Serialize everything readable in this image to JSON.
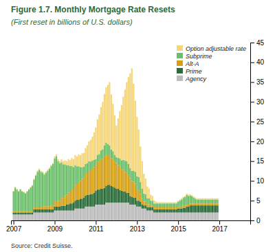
{
  "chart_data": {
    "type": "bar",
    "stacked": true,
    "title": "Figure 1.7. Monthly Mortgage Rate Resets",
    "subtitle": "(First reset in billions of U.S. dollars)",
    "annotations": [
      "Source: Credit Suisse."
    ],
    "legend": "upper right",
    "grid": false,
    "xlim": [
      2006.88,
      2018.5
    ],
    "xticks": [
      2007,
      2009,
      2011,
      2013,
      2015,
      2017
    ],
    "ylim": [
      0,
      45
    ],
    "yticks": [
      0,
      5,
      10,
      15,
      20,
      25,
      30,
      35,
      40,
      45
    ],
    "x": [
      2007,
      2007.0833333333,
      2007.1666666667,
      2007.25,
      2007.3333333333,
      2007.4166666667,
      2007.5,
      2007.5833333333,
      2007.6666666667,
      2007.75,
      2007.8333333333,
      2007.9166666667,
      2008,
      2008.0833333333,
      2008.1666666667,
      2008.25,
      2008.3333333333,
      2008.4166666667,
      2008.5,
      2008.5833333333,
      2008.6666666667,
      2008.75,
      2008.8333333333,
      2008.9166666667,
      2009,
      2009.0833333333,
      2009.1666666667,
      2009.25,
      2009.3333333333,
      2009.4166666667,
      2009.5,
      2009.5833333333,
      2009.6666666667,
      2009.75,
      2009.8333333333,
      2009.9166666667,
      2010,
      2010.0833333333,
      2010.1666666667,
      2010.25,
      2010.3333333333,
      2010.4166666667,
      2010.5,
      2010.5833333333,
      2010.6666666667,
      2010.75,
      2010.8333333333,
      2010.9166666667,
      2011,
      2011.0833333333,
      2011.1666666667,
      2011.25,
      2011.3333333333,
      2011.4166666667,
      2011.5,
      2011.5833333333,
      2011.6666666667,
      2011.75,
      2011.8333333333,
      2011.9166666667,
      2012,
      2012.0833333333,
      2012.1666666667,
      2012.25,
      2012.3333333333,
      2012.4166666667,
      2012.5,
      2012.5833333333,
      2012.6666666667,
      2012.75,
      2012.8333333333,
      2012.9166666667,
      2013,
      2013.0833333333,
      2013.1666666667,
      2013.25,
      2013.3333333333,
      2013.4166666667,
      2013.5,
      2013.5833333333,
      2013.6666666667,
      2013.75,
      2013.8333333333,
      2013.9166666667,
      2014,
      2014.0833333333,
      2014.1666666667,
      2014.25,
      2014.3333333333,
      2014.4166666667,
      2014.5,
      2014.5833333333,
      2014.6666666667,
      2014.75,
      2014.8333333333,
      2014.9166666667,
      2015,
      2015.0833333333,
      2015.1666666667,
      2015.25,
      2015.3333333333,
      2015.4166666667,
      2015.5,
      2015.5833333333,
      2015.6666666667,
      2015.75,
      2015.8333333333,
      2015.9166666667,
      2016,
      2016.0833333333,
      2016.1666666667,
      2016.25,
      2016.3333333333,
      2016.4166666667,
      2016.5,
      2016.5833333333,
      2016.6666666667,
      2016.75,
      2016.8333333333,
      2016.9166666667
    ],
    "series": [
      {
        "name": "Agency",
        "color": "#BBBBBB",
        "values": [
          1.5,
          1.5,
          1.5,
          1.5,
          1.5,
          1.5,
          1.5,
          1.5,
          1.5,
          1.5,
          1.5,
          1.5,
          2.0,
          2.0,
          2.0,
          2.0,
          2.0,
          2.0,
          2.0,
          2.0,
          2.0,
          2.0,
          2.0,
          2.0,
          2.5,
          2.5,
          2.5,
          2.5,
          2.5,
          2.5,
          2.5,
          2.5,
          2.5,
          2.5,
          2.5,
          2.5,
          3.0,
          3.0,
          3.0,
          3.0,
          3.0,
          3.0,
          3.5,
          3.5,
          3.5,
          3.5,
          3.5,
          3.5,
          4.0,
          4.0,
          4.0,
          4.0,
          4.0,
          4.0,
          4.5,
          4.5,
          4.5,
          4.5,
          4.5,
          4.5,
          4.5,
          4.5,
          4.5,
          4.5,
          4.5,
          4.5,
          4.5,
          4.5,
          4.0,
          4.0,
          4.0,
          4.0,
          3.5,
          3.5,
          3.5,
          3.0,
          3.0,
          3.0,
          2.5,
          2.5,
          2.5,
          2.5,
          2.0,
          2.0,
          2.0,
          2.0,
          2.0,
          2.0,
          2.0,
          2.0,
          2.0,
          2.0,
          2.0,
          2.0,
          2.0,
          2.0,
          2.0,
          2.0,
          2.0,
          2.0,
          2.0,
          2.0,
          2.0,
          2.0,
          2.0,
          2.0,
          2.0,
          2.0,
          2.0,
          2.0,
          2.0,
          2.0,
          2.0,
          2.0,
          2.0,
          2.0,
          2.0,
          2.0,
          2.0,
          2.0
        ]
      },
      {
        "name": "Prime",
        "color": "#2A6B3A",
        "values": [
          0.5,
          0.5,
          0.5,
          0.5,
          0.5,
          0.5,
          0.5,
          0.5,
          0.5,
          0.5,
          0.5,
          0.5,
          0.8,
          0.8,
          0.8,
          0.8,
          0.8,
          0.8,
          0.8,
          0.8,
          0.8,
          0.8,
          0.8,
          0.8,
          1.0,
          1.0,
          1.0,
          1.0,
          1.2,
          1.2,
          1.2,
          1.5,
          1.5,
          1.8,
          1.8,
          2.0,
          2.0,
          2.2,
          2.2,
          2.5,
          2.5,
          2.8,
          2.8,
          3.0,
          3.0,
          3.2,
          3.2,
          3.5,
          3.5,
          3.8,
          3.8,
          4.0,
          4.0,
          4.2,
          4.2,
          4.5,
          4.5,
          4.2,
          4.0,
          3.8,
          3.5,
          3.5,
          3.2,
          3.0,
          2.8,
          2.8,
          2.5,
          2.5,
          2.2,
          2.0,
          1.8,
          1.8,
          1.5,
          1.5,
          1.2,
          1.0,
          0.8,
          0.8,
          0.8,
          0.8,
          0.8,
          0.8,
          0.8,
          0.8,
          0.8,
          0.8,
          0.8,
          0.8,
          0.8,
          0.8,
          0.8,
          0.8,
          0.8,
          0.8,
          0.8,
          0.8,
          1.0,
          1.0,
          1.0,
          1.2,
          1.2,
          1.5,
          1.5,
          1.8,
          1.8,
          1.8,
          1.8,
          1.8,
          1.8,
          1.8,
          1.8,
          1.8,
          1.8,
          1.8,
          1.8,
          1.8,
          1.8,
          1.8,
          1.8,
          1.8
        ]
      },
      {
        "name": "Alt-A",
        "color": "#D4A017",
        "values": [
          0.3,
          0.3,
          0.3,
          0.3,
          0.3,
          0.3,
          0.3,
          0.3,
          0.3,
          0.3,
          0.3,
          0.3,
          0.5,
          0.5,
          0.5,
          0.5,
          0.5,
          0.8,
          0.8,
          0.8,
          0.8,
          0.8,
          1.0,
          1.0,
          1.2,
          1.2,
          1.5,
          1.5,
          2.0,
          2.0,
          2.5,
          2.5,
          3.0,
          3.0,
          3.5,
          3.5,
          4.0,
          4.0,
          4.5,
          4.5,
          5.0,
          5.0,
          5.5,
          5.5,
          6.0,
          6.0,
          6.5,
          6.5,
          6.5,
          7.0,
          7.0,
          7.5,
          7.5,
          8.0,
          8.0,
          7.5,
          7.5,
          7.0,
          7.0,
          6.5,
          6.5,
          6.0,
          6.0,
          5.5,
          5.5,
          5.0,
          5.0,
          4.5,
          4.5,
          4.0,
          4.0,
          3.5,
          3.0,
          2.5,
          2.0,
          1.5,
          1.0,
          1.0,
          0.8,
          0.8,
          0.5,
          0.5,
          0.5,
          0.5,
          0.5,
          0.5,
          0.5,
          0.5,
          0.5,
          0.5,
          0.5,
          0.5,
          0.5,
          0.5,
          0.5,
          0.5,
          0.5,
          0.5,
          0.5,
          0.5,
          0.5,
          0.5,
          0.5,
          0.5,
          0.5,
          0.5,
          0.5,
          0.5,
          0.5,
          0.5,
          0.5,
          0.5,
          0.5,
          0.5,
          0.5,
          0.5,
          0.5,
          0.5,
          0.5,
          0.5
        ]
      },
      {
        "name": "Subprime",
        "color": "#6BBF6A",
        "values": [
          5.0,
          6.0,
          5.5,
          5.0,
          5.5,
          5.0,
          4.8,
          4.5,
          5.0,
          5.5,
          6.0,
          6.5,
          7.0,
          8.0,
          9.0,
          9.5,
          9.0,
          8.5,
          8.0,
          8.5,
          9.0,
          9.5,
          10.0,
          10.5,
          11.0,
          11.5,
          10.0,
          9.5,
          9.0,
          8.5,
          8.0,
          7.5,
          7.0,
          6.5,
          6.0,
          5.5,
          5.0,
          4.5,
          4.0,
          3.5,
          3.0,
          2.8,
          2.5,
          2.5,
          2.5,
          2.2,
          2.0,
          1.8,
          1.5,
          1.8,
          2.0,
          2.2,
          2.5,
          2.8,
          3.0,
          2.8,
          2.5,
          2.2,
          2.0,
          1.8,
          1.5,
          1.8,
          2.0,
          2.2,
          2.5,
          2.8,
          3.0,
          2.8,
          2.5,
          2.5,
          2.8,
          3.0,
          3.2,
          3.5,
          3.0,
          2.5,
          2.0,
          1.8,
          1.5,
          1.5,
          1.2,
          1.2,
          1.0,
          1.0,
          1.0,
          1.0,
          1.0,
          1.0,
          1.0,
          1.0,
          1.0,
          1.0,
          1.0,
          1.0,
          1.0,
          1.0,
          1.2,
          1.5,
          1.8,
          2.0,
          2.2,
          2.5,
          2.2,
          2.0,
          1.8,
          1.5,
          1.2,
          1.0,
          1.0,
          1.0,
          1.0,
          1.0,
          1.0,
          1.0,
          1.0,
          1.0,
          1.0,
          1.0,
          1.0,
          1.0
        ]
      },
      {
        "name": "Option adjustable rate",
        "color": "#F5D67A",
        "values": [
          0.2,
          0.2,
          0.2,
          0.2,
          0.2,
          0.2,
          0.2,
          0.2,
          0.2,
          0.2,
          0.2,
          0.2,
          0.3,
          0.3,
          0.3,
          0.3,
          0.3,
          0.3,
          0.3,
          0.3,
          0.3,
          0.3,
          0.3,
          0.3,
          0.5,
          0.5,
          0.5,
          0.5,
          0.8,
          0.8,
          1.0,
          1.0,
          1.5,
          1.5,
          2.0,
          2.0,
          2.5,
          2.5,
          3.0,
          3.0,
          3.5,
          3.5,
          4.0,
          4.5,
          5.0,
          5.5,
          6.0,
          7.0,
          8.0,
          9.0,
          10.0,
          11.0,
          12.0,
          13.0,
          14.0,
          15.0,
          16.0,
          14.0,
          12.0,
          10.0,
          8.0,
          10.0,
          12.0,
          14.0,
          16.0,
          18.0,
          20.0,
          22.0,
          24.0,
          26.0,
          22.0,
          18.0,
          15.0,
          12.0,
          9.0,
          7.0,
          5.0,
          4.0,
          3.0,
          2.5,
          1.5,
          1.2,
          0.8,
          0.5,
          0.3,
          0.3,
          0.3,
          0.3,
          0.3,
          0.3,
          0.3,
          0.3,
          0.3,
          0.3,
          0.3,
          0.3,
          0.3,
          0.3,
          0.3,
          0.3,
          0.3,
          0.3,
          0.3,
          0.3,
          0.3,
          0.3,
          0.3,
          0.3,
          0.3,
          0.3,
          0.3,
          0.3,
          0.3,
          0.3,
          0.3,
          0.3,
          0.3,
          0.3,
          0.3,
          0.3
        ]
      }
    ]
  }
}
